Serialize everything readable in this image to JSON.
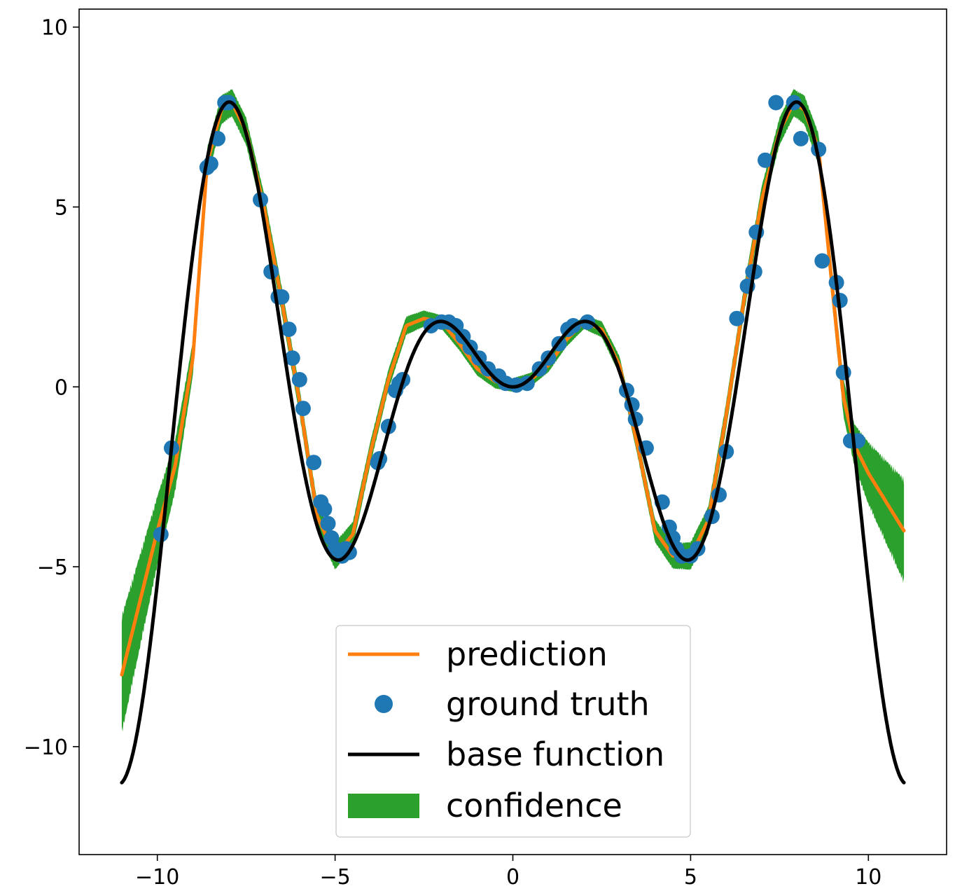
{
  "chart_data": {
    "type": "line",
    "title": "",
    "xlabel": "",
    "ylabel": "",
    "xlim": [
      -12.2,
      12.2
    ],
    "ylim": [
      -13.0,
      10.5
    ],
    "x_ticks": [
      -10,
      -5,
      0,
      5,
      10
    ],
    "x_tick_labels": [
      "−10",
      "−5",
      "0",
      "5",
      "10"
    ],
    "y_ticks": [
      10,
      5,
      0,
      -5,
      -10
    ],
    "y_tick_labels": [
      "10",
      "5",
      "0",
      "−5",
      "−10"
    ],
    "grid": false,
    "legend_position": "bottom-center",
    "colors": {
      "prediction": "#ff7f0e",
      "ground_truth": "#1f77b4",
      "base_function": "#000000",
      "confidence": "#2ca02c"
    },
    "series": [
      {
        "name": "prediction",
        "kind": "line",
        "x": [
          -11,
          -10.5,
          -10,
          -9.5,
          -9,
          -8.6,
          -8.2,
          -7.9,
          -7.5,
          -7,
          -6.5,
          -6,
          -5.5,
          -5,
          -4.5,
          -4,
          -3.5,
          -3,
          -2.5,
          -2,
          -1.5,
          -1,
          -0.5,
          0,
          0.5,
          1,
          1.5,
          2,
          2.5,
          3,
          3.5,
          4,
          4.5,
          5,
          5.5,
          6,
          6.5,
          7,
          7.5,
          7.9,
          8.2,
          8.6,
          9,
          9.3,
          9.6,
          10,
          10.5,
          11
        ],
        "y": [
          -8.0,
          -6.0,
          -4.0,
          -2.2,
          0.8,
          6.2,
          7.7,
          7.9,
          7.1,
          5.0,
          2.4,
          -0.4,
          -3.6,
          -4.7,
          -4.1,
          -1.8,
          0.2,
          1.7,
          1.9,
          1.8,
          1.2,
          0.5,
          0.15,
          0.05,
          0.2,
          0.6,
          1.3,
          1.8,
          1.6,
          0.6,
          -1.6,
          -4.0,
          -4.7,
          -4.7,
          -3.7,
          -0.8,
          2.4,
          5.2,
          7.1,
          7.9,
          7.7,
          6.6,
          2.6,
          -0.3,
          -1.6,
          -2.4,
          -3.2,
          -4.0
        ]
      },
      {
        "name": "ground truth",
        "kind": "scatter",
        "x": [
          -9.9,
          -9.6,
          -8.6,
          -8.5,
          -8.3,
          -8.1,
          -8.0,
          -7.1,
          -6.8,
          -6.6,
          -6.5,
          -6.3,
          -6.2,
          -6.0,
          -5.9,
          -5.6,
          -5.4,
          -5.3,
          -5.2,
          -5.1,
          -5.0,
          -4.8,
          -4.7,
          -4.6,
          -3.8,
          -3.75,
          -3.5,
          -3.3,
          -3.2,
          -3.1,
          -2.3,
          -2.0,
          -1.8,
          -1.6,
          -1.4,
          -1.2,
          -0.95,
          -0.7,
          -0.4,
          -0.2,
          0.1,
          0.4,
          0.75,
          1.0,
          1.3,
          1.55,
          1.7,
          2.1,
          3.2,
          3.35,
          3.45,
          3.75,
          4.2,
          4.4,
          4.5,
          4.6,
          4.75,
          5.0,
          5.2,
          5.6,
          5.8,
          6.0,
          6.3,
          6.6,
          6.75,
          6.8,
          6.85,
          7.1,
          7.4,
          7.9,
          8.1,
          8.6,
          8.7,
          9.1,
          9.2,
          9.3,
          9.5,
          9.7
        ],
        "y": [
          -4.1,
          -1.7,
          6.1,
          6.2,
          6.9,
          7.9,
          7.9,
          5.2,
          3.2,
          2.5,
          2.5,
          1.6,
          0.8,
          0.2,
          -0.6,
          -2.1,
          -3.2,
          -3.4,
          -3.8,
          -4.2,
          -4.5,
          -4.7,
          -4.5,
          -4.6,
          -2.1,
          -2.0,
          -1.1,
          -0.1,
          0.1,
          0.2,
          1.7,
          1.8,
          1.8,
          1.7,
          1.4,
          1.1,
          0.8,
          0.5,
          0.3,
          0.1,
          0.05,
          0.1,
          0.5,
          0.8,
          1.2,
          1.6,
          1.7,
          1.8,
          -0.1,
          -0.5,
          -0.9,
          -1.7,
          -3.2,
          -3.9,
          -4.2,
          -4.5,
          -4.7,
          -4.7,
          -4.5,
          -3.6,
          -3.0,
          -1.8,
          1.9,
          2.8,
          3.2,
          3.2,
          4.3,
          6.3,
          7.9,
          7.9,
          6.9,
          6.6,
          3.5,
          2.9,
          2.4,
          0.4,
          -1.5,
          -1.5
        ]
      },
      {
        "name": "base function",
        "kind": "line",
        "formula": "x*sin(x)",
        "x_range": [
          -11,
          11
        ]
      },
      {
        "name": "confidence",
        "kind": "band",
        "half_width_x": [
          -11,
          -10,
          -9,
          -8,
          -5,
          -2,
          0,
          2,
          5,
          8,
          9,
          9.6,
          10,
          11
        ],
        "half_width": [
          1.7,
          1.0,
          0.5,
          0.4,
          0.4,
          0.2,
          0.2,
          0.2,
          0.4,
          0.4,
          0.5,
          0.6,
          0.9,
          1.5
        ]
      }
    ]
  }
}
